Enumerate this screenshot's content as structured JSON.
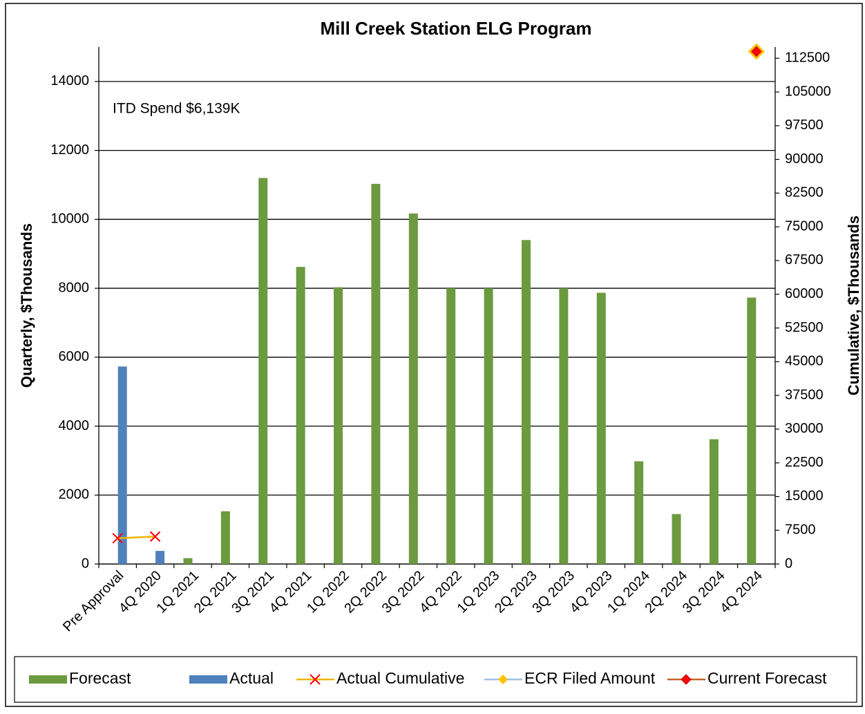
{
  "chart_data": {
    "type": "bar",
    "title": "Mill Creek Station ELG Program",
    "annotation": "ITD Spend  $6,139K",
    "y_label": "Quarterly, $Thousands",
    "y2_label": "Cumulative, $Thousands",
    "categories": [
      "Pre Approval",
      "4Q 2020",
      "1Q 2021",
      "2Q 2021",
      "3Q 2021",
      "4Q 2021",
      "1Q 2022",
      "2Q 2022",
      "3Q 2022",
      "4Q 2022",
      "1Q 2023",
      "2Q 2023",
      "3Q 2023",
      "4Q 2023",
      "1Q 2024",
      "2Q 2024",
      "3Q 2024",
      "4Q 2024"
    ],
    "series": [
      {
        "name": "Forecast",
        "type": "bar",
        "color": "#6b9a3f",
        "values": [
          null,
          null,
          170,
          1530,
          11200,
          8620,
          8030,
          11030,
          10170,
          8000,
          8000,
          9400,
          8000,
          7870,
          2980,
          1450,
          3620,
          7730
        ]
      },
      {
        "name": "Actual",
        "type": "bar",
        "color": "#4f81bd",
        "values": [
          5730,
          380,
          null,
          null,
          null,
          null,
          null,
          null,
          null,
          null,
          null,
          null,
          null,
          null,
          null,
          null,
          null,
          null
        ]
      },
      {
        "name": "Actual Cumulative",
        "type": "line",
        "axis": "y2",
        "color": "#f0b400",
        "marker": "x",
        "marker_color": "#ff0000",
        "values": [
          5730,
          6110,
          null,
          null,
          null,
          null,
          null,
          null,
          null,
          null,
          null,
          null,
          null,
          null,
          null,
          null,
          null,
          null
        ]
      },
      {
        "name": "ECR Filed Amount",
        "type": "line",
        "axis": "y2",
        "color": "#9dc3e6",
        "marker": "diamond-large",
        "marker_color": "#ffc000",
        "values": [
          null,
          null,
          null,
          null,
          null,
          null,
          null,
          null,
          null,
          null,
          null,
          null,
          null,
          null,
          null,
          null,
          null,
          114000
        ]
      },
      {
        "name": "Current Forecast",
        "type": "line",
        "axis": "y2",
        "color": "#c5652a",
        "marker": "diamond",
        "marker_color": "#ff0000",
        "values": [
          null,
          null,
          null,
          null,
          null,
          null,
          null,
          null,
          null,
          null,
          null,
          null,
          null,
          null,
          null,
          null,
          null,
          114000
        ]
      }
    ],
    "ylim": [
      0,
      15000
    ],
    "yticks": [
      0,
      2000,
      4000,
      6000,
      8000,
      10000,
      12000,
      14000
    ],
    "y2lim": [
      0,
      115000
    ],
    "y2ticks": [
      0,
      7500,
      15000,
      22500,
      30000,
      37500,
      45000,
      52500,
      60000,
      67500,
      75000,
      82500,
      90000,
      97500,
      105000,
      112500
    ],
    "grid": true,
    "legend": "bottom"
  }
}
